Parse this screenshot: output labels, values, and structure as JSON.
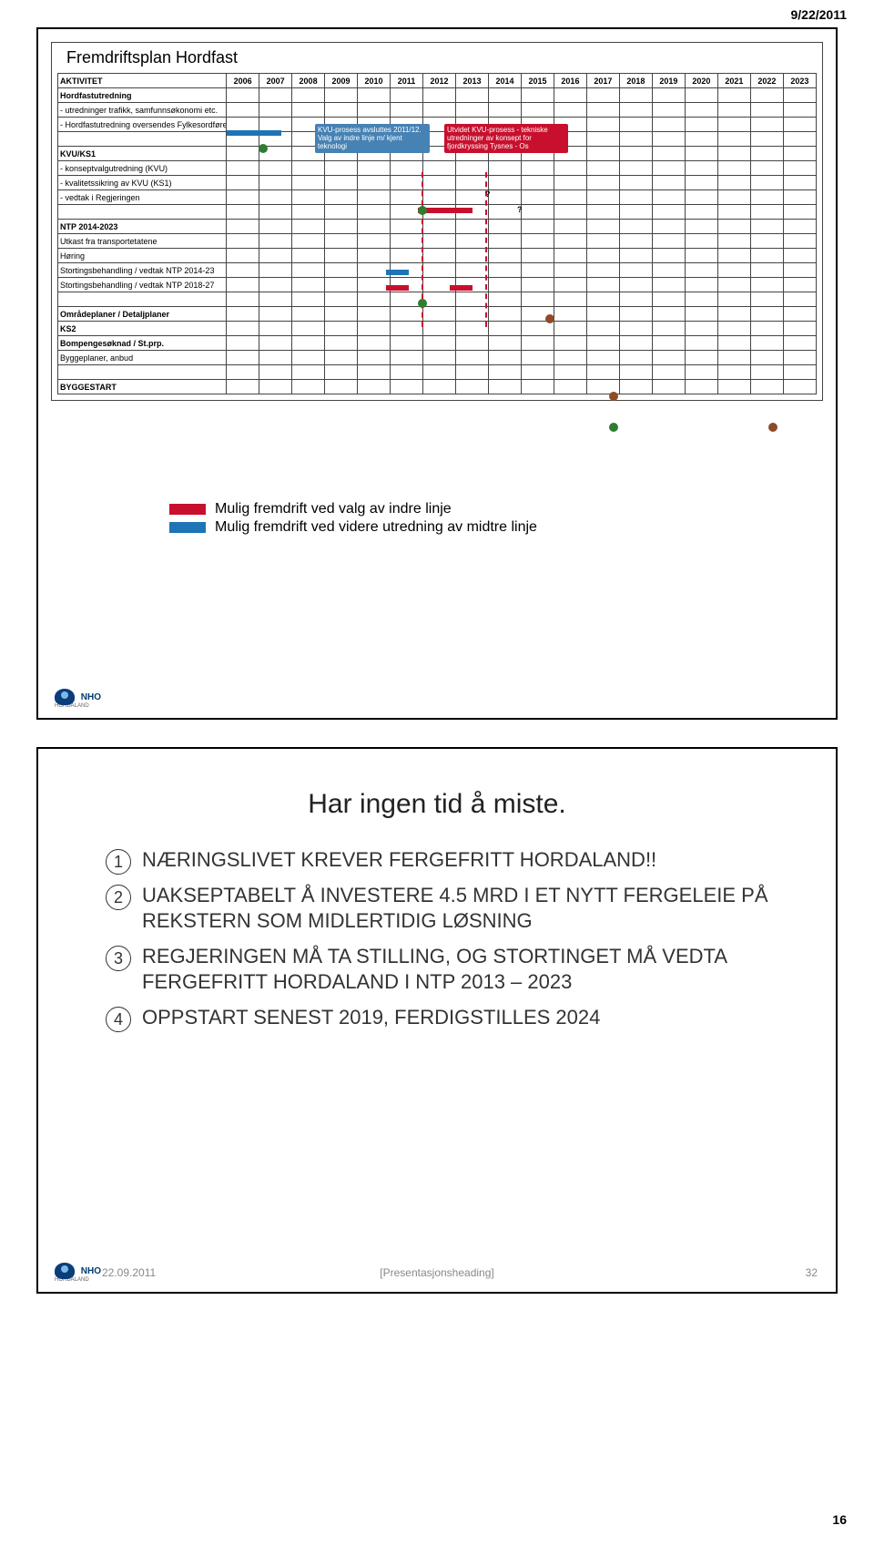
{
  "page": {
    "date_corner": "9/22/2011",
    "page_number": "16"
  },
  "slide1": {
    "title": "Fremdriftsplan Hordfast",
    "header_label": "AKTIVITET",
    "years": [
      "2006",
      "2007",
      "2008",
      "2009",
      "2010",
      "2011",
      "2012",
      "2013",
      "2014",
      "2015",
      "2016",
      "2017",
      "2018",
      "2019",
      "2020",
      "2021",
      "2022",
      "2023"
    ],
    "rows": [
      {
        "label": "Hordfastutredning",
        "bold": true
      },
      {
        "label": "- utredninger trafikk, samfunnsøkonomi etc.",
        "bar": {
          "start": 1,
          "span": 2,
          "color": "#1f74b6"
        }
      },
      {
        "label": "- Hordfastutredning oversendes Fylkesordfører",
        "dots": [
          {
            "col": 2,
            "cls": "dot-green"
          }
        ]
      },
      {
        "label": ""
      },
      {
        "label": "KVU/KS1",
        "bold": true
      },
      {
        "label": "- konseptvalgutredning (KVU)",
        "qcol": 9
      },
      {
        "label": "- kvalitetssikring av KVU (KS1)",
        "dots": [
          {
            "col": 7,
            "cls": "dot-green"
          }
        ],
        "bar": {
          "start": 7,
          "span": 2,
          "color": "#c8102e"
        },
        "qcol": 10
      },
      {
        "label": "- vedtak i Regjeringen"
      },
      {
        "label": ""
      },
      {
        "label": "NTP 2014-2023",
        "bold": true
      },
      {
        "label": "Utkast fra transportetatene",
        "bar": {
          "start": 6,
          "span": 1,
          "color": "#1f74b6"
        }
      },
      {
        "label": "Høring",
        "bar": {
          "start": 6,
          "span": 1,
          "color": "#c8102e"
        },
        "bar2": {
          "start": 8,
          "span": 1,
          "color": "#c8102e"
        }
      },
      {
        "label": "Stortingsbehandling / vedtak NTP 2014-23",
        "dots": [
          {
            "col": 7,
            "cls": "dot-green"
          }
        ]
      },
      {
        "label": "Stortingsbehandling / vedtak NTP 2018-27",
        "dots": [
          {
            "col": 11,
            "cls": "dot-brown"
          }
        ]
      },
      {
        "label": ""
      },
      {
        "label": "Områdeplaner / Detaljplaner",
        "bold": true
      },
      {
        "label": "KS2",
        "bold": true
      },
      {
        "label": "Bompengesøknad / St.prp.",
        "bold": true
      },
      {
        "label": "Byggeplaner, anbud",
        "bold": false,
        "dots": [
          {
            "col": 13,
            "cls": "dot-brown"
          }
        ]
      },
      {
        "label": ""
      },
      {
        "label": "BYGGESTART",
        "bold": true,
        "dots": [
          {
            "col": 13,
            "cls": "dot-green"
          },
          {
            "col": 18,
            "cls": "dot-brown"
          }
        ]
      }
    ],
    "callouts": {
      "blue": "KVU-prosess avsluttes 2011/12. Valg av indre linje m/ kjent teknologi",
      "red": "Utvidet KVU-prosess - tekniske utredninger av konsept for fjordkryssing Tysnes - Os"
    },
    "legend": {
      "red": "Mulig fremdrift ved valg av indre linje",
      "blue": "Mulig fremdrift ved videre utredning av midtre linje"
    }
  },
  "slide2": {
    "title": "Har ingen tid å miste.",
    "points": [
      "NÆRINGSLIVET KREVER FERGEFRITT HORDALAND!!",
      "UAKSEPTABELT Å INVESTERE 4.5 MRD I ET NYTT FERGELEIE PÅ REKSTERN SOM MIDLERTIDIG LØSNING",
      "REGJERINGEN MÅ TA STILLING, OG STORTINGET MÅ VEDTA FERGEFRITT HORDALAND I NTP 2013 – 2023",
      "OPPSTART SENEST 2019, FERDIGSTILLES 2024"
    ],
    "footer_date": "22.09.2011",
    "footer_center": "[Presentasjonsheading]",
    "footer_num": "32"
  },
  "logo": {
    "text": "NHO",
    "sub": "HORDALAND"
  },
  "style": {
    "blue": "#1f74b6",
    "red": "#c8102e",
    "green": "#2e7d32",
    "brown": "#8d4b2a"
  }
}
